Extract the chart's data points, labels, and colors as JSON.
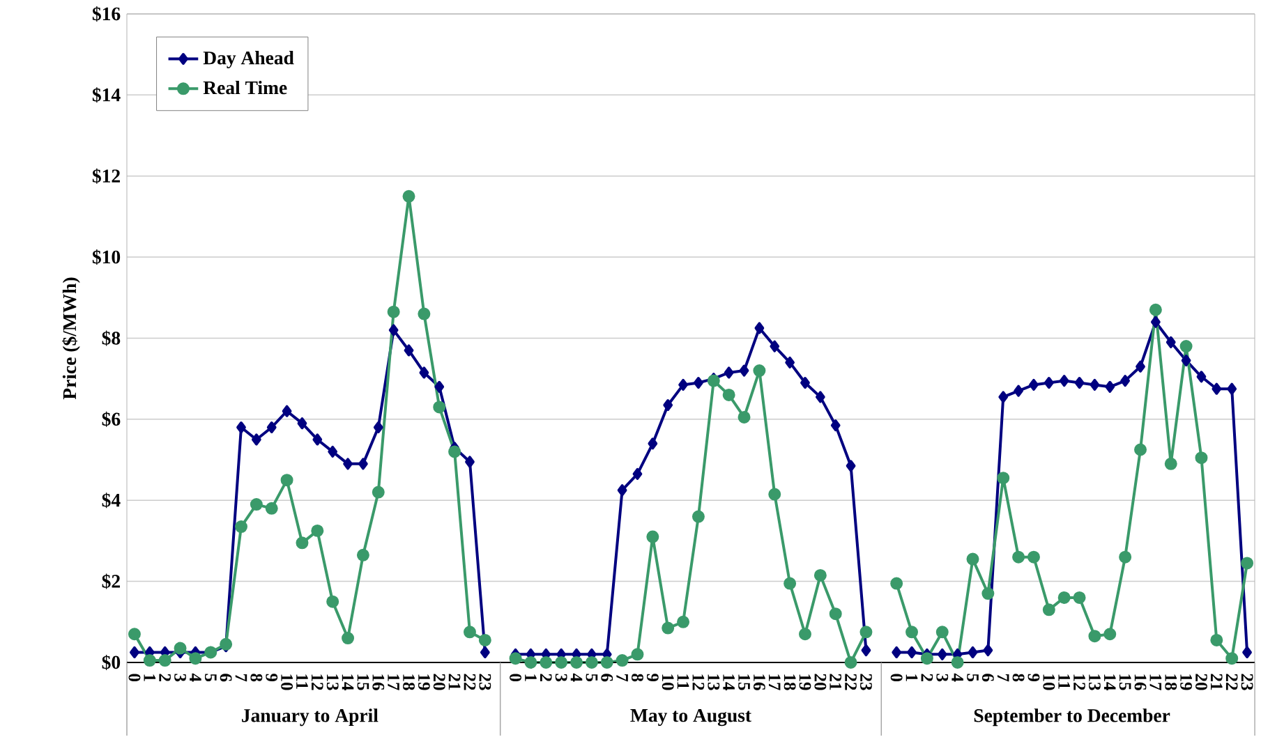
{
  "chart_data": {
    "type": "line",
    "ylabel": "Price ($/MWh)",
    "categories": [
      "0",
      "1",
      "2",
      "3",
      "4",
      "5",
      "6",
      "7",
      "8",
      "9",
      "10",
      "11",
      "12",
      "13",
      "14",
      "15",
      "16",
      "17",
      "18",
      "19",
      "20",
      "21",
      "22",
      "23",
      null,
      "0",
      "1",
      "2",
      "3",
      "4",
      "5",
      "6",
      "7",
      "8",
      "9",
      "10",
      "11",
      "12",
      "13",
      "14",
      "15",
      "16",
      "17",
      "18",
      "19",
      "20",
      "21",
      "22",
      "23",
      null,
      "0",
      "1",
      "2",
      "3",
      "4",
      "5",
      "6",
      "7",
      "8",
      "9",
      "10",
      "11",
      "12",
      "13",
      "14",
      "15",
      "16",
      "17",
      "18",
      "19",
      "20",
      "21",
      "22",
      "23"
    ],
    "series": [
      {
        "name": "Day Ahead",
        "color": "#000080",
        "marker": "diamond",
        "values": [
          0.25,
          0.25,
          0.25,
          0.25,
          0.25,
          0.25,
          0.4,
          5.8,
          5.5,
          5.8,
          6.2,
          5.9,
          5.5,
          5.2,
          4.9,
          4.9,
          5.8,
          8.2,
          7.7,
          7.15,
          6.8,
          5.3,
          4.95,
          0.25,
          null,
          0.2,
          0.2,
          0.2,
          0.2,
          0.2,
          0.2,
          0.2,
          4.25,
          4.65,
          5.4,
          6.35,
          6.85,
          6.9,
          7.0,
          7.15,
          7.2,
          8.25,
          7.8,
          7.4,
          6.9,
          6.55,
          5.85,
          4.85,
          0.3,
          null,
          0.25,
          0.25,
          0.2,
          0.2,
          0.2,
          0.25,
          0.3,
          6.55,
          6.7,
          6.85,
          6.9,
          6.95,
          6.9,
          6.85,
          6.8,
          6.95,
          7.3,
          8.4,
          7.9,
          7.45,
          7.05,
          6.75,
          6.75,
          0.25
        ]
      },
      {
        "name": "Real Time",
        "color": "#3a9a6a",
        "marker": "circle",
        "values": [
          0.7,
          0.05,
          0.05,
          0.35,
          0.1,
          0.25,
          0.45,
          3.35,
          3.9,
          3.8,
          4.5,
          2.95,
          3.25,
          1.5,
          0.6,
          2.65,
          4.2,
          8.65,
          11.5,
          8.6,
          6.3,
          5.2,
          0.75,
          0.55,
          null,
          0.1,
          0.0,
          0.0,
          0.0,
          0.0,
          0.0,
          0.0,
          0.05,
          0.2,
          3.1,
          0.85,
          1.0,
          3.6,
          6.95,
          6.6,
          6.05,
          7.2,
          4.15,
          1.95,
          0.7,
          2.15,
          1.2,
          0.0,
          0.75,
          null,
          1.95,
          0.75,
          0.1,
          0.75,
          0.0,
          2.55,
          1.7,
          4.55,
          2.6,
          2.6,
          1.3,
          1.6,
          1.6,
          0.65,
          0.7,
          2.6,
          5.25,
          8.7,
          4.9,
          7.8,
          5.05,
          0.55,
          0.1,
          2.45
        ]
      }
    ],
    "ylim": [
      0,
      16
    ],
    "yticks": [
      {
        "value": 0,
        "label": "$0"
      },
      {
        "value": 2,
        "label": "$2"
      },
      {
        "value": 4,
        "label": "$4"
      },
      {
        "value": 6,
        "label": "$6"
      },
      {
        "value": 8,
        "label": "$8"
      },
      {
        "value": 10,
        "label": "$10"
      },
      {
        "value": 12,
        "label": "$12"
      },
      {
        "value": 14,
        "label": "$14"
      },
      {
        "value": 16,
        "label": "$16"
      }
    ],
    "grid": "y",
    "legend": "top left",
    "annotations": [
      "January to April",
      "May to August",
      "September to December"
    ]
  }
}
